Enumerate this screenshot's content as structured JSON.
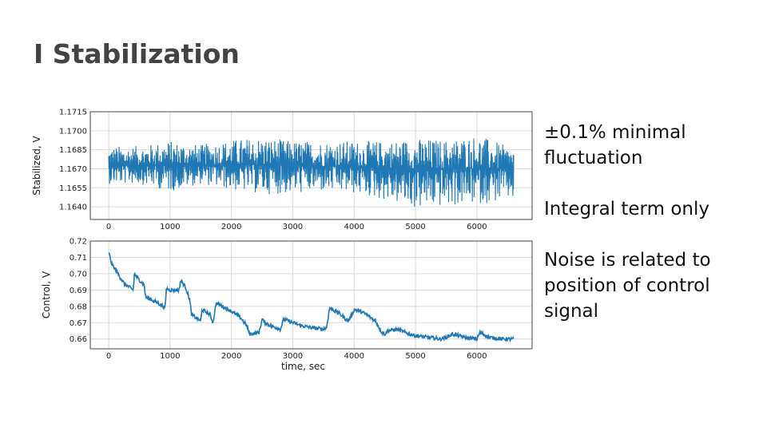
{
  "slide": {
    "title": "I Stabilization",
    "notes": [
      "±0.1% minimal fluctuation",
      "Integral term only",
      "Noise is related to position of control signal"
    ]
  },
  "chart_data": [
    {
      "type": "line",
      "ylabel": "Stabilized, V",
      "xlabel": "",
      "xlim": [
        -300,
        6900
      ],
      "ylim": [
        1.163,
        1.1715
      ],
      "xticks": [
        0,
        1000,
        2000,
        3000,
        4000,
        5000,
        6000
      ],
      "yticks": [
        1.164,
        1.1655,
        1.167,
        1.1685,
        1.17,
        1.1715
      ],
      "ytick_labels": [
        "1.1640",
        "1.1655",
        "1.1670",
        "1.1685",
        "1.1700",
        "1.1715"
      ],
      "grid": true,
      "color": "#1f77b4",
      "series": [
        {
          "x": [
            0,
            500,
            1000,
            1500,
            2000,
            2500,
            3000,
            3500,
            4000,
            4500,
            5000,
            5500,
            6000,
            6600
          ],
          "mean": [
            1.1672,
            1.1673,
            1.1673,
            1.1673,
            1.1673,
            1.1673,
            1.1673,
            1.1672,
            1.1672,
            1.1671,
            1.167,
            1.167,
            1.167,
            1.167
          ],
          "upper": [
            1.1688,
            1.1688,
            1.1692,
            1.1689,
            1.1693,
            1.1695,
            1.1692,
            1.1692,
            1.1692,
            1.1692,
            1.1694,
            1.1693,
            1.1697,
            1.1686
          ],
          "lower": [
            1.1658,
            1.1658,
            1.1652,
            1.1658,
            1.1653,
            1.165,
            1.165,
            1.1652,
            1.165,
            1.1645,
            1.1638,
            1.164,
            1.1642,
            1.1645
          ]
        }
      ]
    },
    {
      "type": "line",
      "ylabel": "Control, V",
      "xlabel": "time, sec",
      "xlim": [
        -300,
        6900
      ],
      "ylim": [
        0.654,
        0.72
      ],
      "xticks": [
        0,
        1000,
        2000,
        3000,
        4000,
        5000,
        6000
      ],
      "yticks": [
        0.66,
        0.67,
        0.68,
        0.69,
        0.7,
        0.71,
        0.72
      ],
      "ytick_labels": [
        "0.66",
        "0.67",
        "0.68",
        "0.69",
        "0.70",
        "0.71",
        "0.72"
      ],
      "grid": true,
      "color": "#1f77b4",
      "series": [
        {
          "x": [
            0,
            50,
            150,
            250,
            400,
            420,
            480,
            580,
            600,
            700,
            850,
            920,
            940,
            1000,
            1150,
            1170,
            1250,
            1320,
            1350,
            1500,
            1520,
            1650,
            1700,
            1750,
            1850,
            2000,
            2150,
            2250,
            2300,
            2450,
            2500,
            2550,
            2650,
            2800,
            2850,
            3000,
            3150,
            3300,
            3500,
            3550,
            3600,
            3750,
            3900,
            3950,
            4000,
            4100,
            4200,
            4350,
            4450,
            4500,
            4550,
            4700,
            4900,
            5000,
            5200,
            5400,
            5500,
            5600,
            5800,
            6000,
            6050,
            6200,
            6400,
            6600
          ],
          "y": [
            0.713,
            0.706,
            0.7,
            0.694,
            0.69,
            0.7,
            0.697,
            0.693,
            0.686,
            0.684,
            0.681,
            0.679,
            0.691,
            0.69,
            0.69,
            0.696,
            0.692,
            0.684,
            0.675,
            0.671,
            0.678,
            0.675,
            0.67,
            0.682,
            0.68,
            0.677,
            0.673,
            0.668,
            0.663,
            0.664,
            0.672,
            0.67,
            0.668,
            0.666,
            0.672,
            0.67,
            0.668,
            0.667,
            0.666,
            0.667,
            0.679,
            0.676,
            0.671,
            0.674,
            0.678,
            0.677,
            0.675,
            0.671,
            0.664,
            0.663,
            0.665,
            0.666,
            0.663,
            0.662,
            0.661,
            0.66,
            0.661,
            0.663,
            0.661,
            0.66,
            0.664,
            0.661,
            0.66,
            0.66
          ]
        }
      ]
    }
  ]
}
